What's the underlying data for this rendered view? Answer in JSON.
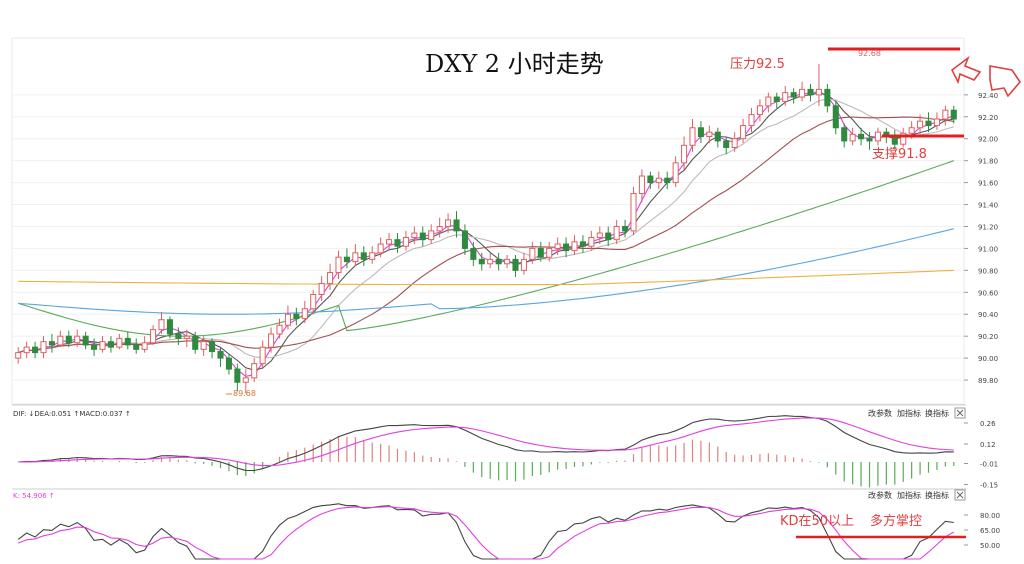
{
  "title": "DXY 2 小时走势",
  "annotations": {
    "resistance": "压力92.5",
    "support": "支撑91.8",
    "low_label": "89.68",
    "high_label": "92.68",
    "kd_note_1": "KD在50以上",
    "kd_note_2": "多方掌控"
  },
  "macd_panel": {
    "header": "DIF: ↓DEA:0.051 ↑MACD:0.037 ↑",
    "buttons": [
      "改参数",
      "加指标",
      "换指标"
    ]
  },
  "kd_panel": {
    "header": "K: 54.906 ↑",
    "buttons": [
      "改参数",
      "加指标",
      "换指标"
    ]
  },
  "colors": {
    "up": "#e06060",
    "down": "#2e8b3e",
    "ma_fast": "#e040e0",
    "ma_5": "#555555",
    "ma_10": "#bbbbbb",
    "ma_20": "#a05050",
    "ma_60": "#5aab5a",
    "ma_120": "#5aa5e0",
    "ma_250": "#f0b040",
    "marker": "#e02020",
    "arrow": "#e04040"
  },
  "chart_data": [
    {
      "type": "candlestick",
      "title": "DXY 2 小时走势",
      "ylim": [
        89.6,
        92.9
      ],
      "y_ticks": [
        "92.40",
        "92.20",
        "92.00",
        "91.80",
        "91.60",
        "91.40",
        "91.20",
        "91.00",
        "90.80",
        "90.60",
        "90.40",
        "90.20",
        "90.00",
        "89.80"
      ],
      "candles": [
        [
          90.0,
          90.05,
          89.95,
          90.1
        ],
        [
          90.05,
          90.1,
          90.0,
          90.15
        ],
        [
          90.1,
          90.05,
          90.0,
          90.15
        ],
        [
          90.05,
          90.15,
          90.0,
          90.2
        ],
        [
          90.15,
          90.12,
          90.05,
          90.22
        ],
        [
          90.12,
          90.2,
          90.1,
          90.25
        ],
        [
          90.2,
          90.14,
          90.1,
          90.25
        ],
        [
          90.14,
          90.2,
          90.1,
          90.26
        ],
        [
          90.2,
          90.12,
          90.08,
          90.24
        ],
        [
          90.12,
          90.08,
          90.02,
          90.18
        ],
        [
          90.08,
          90.15,
          90.05,
          90.2
        ],
        [
          90.15,
          90.1,
          90.05,
          90.2
        ],
        [
          90.1,
          90.18,
          90.08,
          90.22
        ],
        [
          90.18,
          90.12,
          90.08,
          90.24
        ],
        [
          90.12,
          90.08,
          90.04,
          90.18
        ],
        [
          90.08,
          90.14,
          90.05,
          90.2
        ],
        [
          90.14,
          90.26,
          90.12,
          90.3
        ],
        [
          90.26,
          90.35,
          90.22,
          90.42
        ],
        [
          90.35,
          90.22,
          90.18,
          90.38
        ],
        [
          90.22,
          90.18,
          90.12,
          90.28
        ],
        [
          90.18,
          90.2,
          90.1,
          90.26
        ],
        [
          90.2,
          90.08,
          90.04,
          90.24
        ],
        [
          90.08,
          90.15,
          90.02,
          90.2
        ],
        [
          90.15,
          90.06,
          90.0,
          90.18
        ],
        [
          90.06,
          90.0,
          89.92,
          90.1
        ],
        [
          90.0,
          89.9,
          89.85,
          90.04
        ],
        [
          89.9,
          89.78,
          89.7,
          89.95
        ],
        [
          89.78,
          89.82,
          89.68,
          89.9
        ],
        [
          89.82,
          89.95,
          89.78,
          90.0
        ],
        [
          89.95,
          90.1,
          89.9,
          90.16
        ],
        [
          90.1,
          90.22,
          90.05,
          90.28
        ],
        [
          90.22,
          90.3,
          90.18,
          90.36
        ],
        [
          90.3,
          90.4,
          90.26,
          90.48
        ],
        [
          90.4,
          90.36,
          90.3,
          90.46
        ],
        [
          90.36,
          90.45,
          90.32,
          90.52
        ],
        [
          90.45,
          90.58,
          90.4,
          90.62
        ],
        [
          90.58,
          90.68,
          90.52,
          90.75
        ],
        [
          90.68,
          90.78,
          90.62,
          90.86
        ],
        [
          90.78,
          90.92,
          90.72,
          90.98
        ],
        [
          90.92,
          90.88,
          90.82,
          91.0
        ],
        [
          90.88,
          90.96,
          90.84,
          91.04
        ],
        [
          90.96,
          90.9,
          90.84,
          91.02
        ],
        [
          90.9,
          90.96,
          90.86,
          91.02
        ],
        [
          90.96,
          91.04,
          90.92,
          91.1
        ],
        [
          91.04,
          91.08,
          90.98,
          91.14
        ],
        [
          91.08,
          91.02,
          90.96,
          91.14
        ],
        [
          91.02,
          91.1,
          90.98,
          91.16
        ],
        [
          91.1,
          91.14,
          91.04,
          91.2
        ],
        [
          91.14,
          91.08,
          91.02,
          91.2
        ],
        [
          91.08,
          91.16,
          91.04,
          91.22
        ],
        [
          91.16,
          91.2,
          91.1,
          91.28
        ],
        [
          91.2,
          91.26,
          91.14,
          91.32
        ],
        [
          91.26,
          91.16,
          91.1,
          91.34
        ],
        [
          91.16,
          91.0,
          90.94,
          91.22
        ],
        [
          91.0,
          90.9,
          90.84,
          91.06
        ],
        [
          90.9,
          90.86,
          90.8,
          90.96
        ],
        [
          90.86,
          90.9,
          90.82,
          90.96
        ],
        [
          90.9,
          90.86,
          90.8,
          90.96
        ],
        [
          90.86,
          90.9,
          90.82,
          90.94
        ],
        [
          90.9,
          90.8,
          90.74,
          90.94
        ],
        [
          90.8,
          90.9,
          90.76,
          90.96
        ],
        [
          90.9,
          91.0,
          90.86,
          91.06
        ],
        [
          91.0,
          90.92,
          90.88,
          91.06
        ],
        [
          90.92,
          91.0,
          90.88,
          91.06
        ],
        [
          91.0,
          91.04,
          90.94,
          91.1
        ],
        [
          91.04,
          90.98,
          90.92,
          91.1
        ],
        [
          90.98,
          91.06,
          90.94,
          91.12
        ],
        [
          91.06,
          91.02,
          90.96,
          91.12
        ],
        [
          91.02,
          91.1,
          90.98,
          91.16
        ],
        [
          91.1,
          91.14,
          91.04,
          91.2
        ],
        [
          91.14,
          91.08,
          91.02,
          91.2
        ],
        [
          91.08,
          91.2,
          91.04,
          91.26
        ],
        [
          91.2,
          91.16,
          91.1,
          91.26
        ],
        [
          91.16,
          91.5,
          91.12,
          91.56
        ],
        [
          91.5,
          91.66,
          91.42,
          91.72
        ],
        [
          91.66,
          91.6,
          91.54,
          91.7
        ],
        [
          91.6,
          91.64,
          91.54,
          91.7
        ],
        [
          91.64,
          91.6,
          91.54,
          91.7
        ],
        [
          91.6,
          91.78,
          91.56,
          91.84
        ],
        [
          91.78,
          91.94,
          91.72,
          92.02
        ],
        [
          91.94,
          92.1,
          91.88,
          92.18
        ],
        [
          92.1,
          92.02,
          91.96,
          92.16
        ],
        [
          92.02,
          92.06,
          91.96,
          92.12
        ],
        [
          92.06,
          91.98,
          91.92,
          92.1
        ],
        [
          91.98,
          91.92,
          91.86,
          92.02
        ],
        [
          91.92,
          92.0,
          91.88,
          92.06
        ],
        [
          92.0,
          92.12,
          91.96,
          92.18
        ],
        [
          92.12,
          92.22,
          92.06,
          92.28
        ],
        [
          92.22,
          92.3,
          92.16,
          92.36
        ],
        [
          92.3,
          92.38,
          92.24,
          92.42
        ],
        [
          92.38,
          92.34,
          92.28,
          92.42
        ],
        [
          92.34,
          92.42,
          92.3,
          92.48
        ],
        [
          92.42,
          92.38,
          92.32,
          92.46
        ],
        [
          92.38,
          92.45,
          92.34,
          92.52
        ],
        [
          92.45,
          92.4,
          92.34,
          92.5
        ],
        [
          92.4,
          92.45,
          92.3,
          92.68
        ],
        [
          92.45,
          92.3,
          92.24,
          92.5
        ],
        [
          92.3,
          92.1,
          92.04,
          92.34
        ],
        [
          92.1,
          91.98,
          91.92,
          92.14
        ],
        [
          91.98,
          92.04,
          91.94,
          92.1
        ],
        [
          92.04,
          92.0,
          91.94,
          92.1
        ],
        [
          92.0,
          91.98,
          91.9,
          92.06
        ],
        [
          91.98,
          92.06,
          91.94,
          92.1
        ],
        [
          92.06,
          92.02,
          91.96,
          92.1
        ],
        [
          92.02,
          91.95,
          91.9,
          92.08
        ],
        [
          91.95,
          92.05,
          91.92,
          92.1
        ],
        [
          92.05,
          92.1,
          92.0,
          92.16
        ],
        [
          92.1,
          92.16,
          92.04,
          92.22
        ],
        [
          92.16,
          92.12,
          92.06,
          92.24
        ],
        [
          92.12,
          92.18,
          92.08,
          92.24
        ],
        [
          92.18,
          92.26,
          92.12,
          92.3
        ],
        [
          92.26,
          92.18,
          92.14,
          92.3
        ]
      ],
      "moving_averages": [
        {
          "name": "MA5",
          "values": [
            90.0,
            92.18
          ]
        },
        {
          "name": "MA60",
          "values": [
            89.85,
            91.8
          ]
        },
        {
          "name": "MA120",
          "values": [
            90.5,
            91.18
          ]
        },
        {
          "name": "MA250",
          "values": [
            90.7,
            90.8
          ]
        }
      ],
      "levels": [
        {
          "label": "压力92.5",
          "value": 92.5
        },
        {
          "label": "支撑91.8",
          "value": 91.8
        }
      ]
    },
    {
      "type": "bar",
      "title": "MACD",
      "ylim": [
        -0.16,
        0.28
      ],
      "y_ticks": [
        "0.26",
        "0.12",
        "-0.01",
        "-0.15"
      ]
    },
    {
      "type": "line",
      "title": "KD",
      "ylim": [
        35,
        95
      ],
      "y_ticks": [
        "80.00",
        "65.00",
        "50.00"
      ],
      "reference_level": 50
    }
  ]
}
